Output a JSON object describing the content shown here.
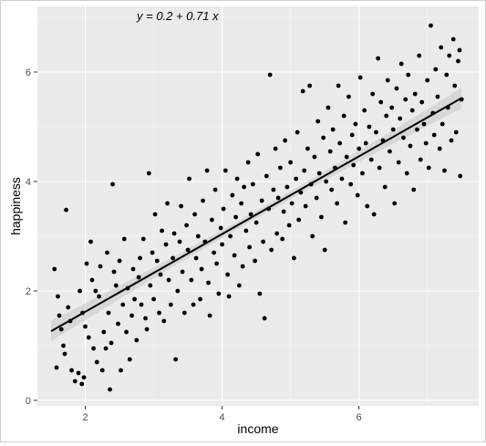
{
  "chart_data": {
    "type": "scatter",
    "annotation": {
      "text": "y = 0.2 + 0.71 x",
      "x": 3.35,
      "y": 6.95
    },
    "xlabel": "income",
    "ylabel": "happiness",
    "xlim": [
      1.3,
      7.75
    ],
    "ylim": [
      -0.1,
      7.2
    ],
    "xticks": [
      2,
      4,
      6
    ],
    "yticks": [
      0,
      2,
      4,
      6
    ],
    "grid": true,
    "fit_line": {
      "intercept": 0.2,
      "slope": 0.71,
      "x_range": [
        1.5,
        7.5
      ]
    },
    "colors": {
      "panel": "#ebebeb",
      "grid_major": "#ffffff",
      "point": "#000000",
      "line": "#000000",
      "ribbon": "#c9c9c9",
      "axis_text": "#4d4d4d"
    },
    "points": [
      [
        1.55,
        2.4
      ],
      [
        1.6,
        1.9
      ],
      [
        1.62,
        1.55
      ],
      [
        1.65,
        1.3
      ],
      [
        1.68,
        1.0
      ],
      [
        1.7,
        0.85
      ],
      [
        1.72,
        3.48
      ],
      [
        1.58,
        0.6
      ],
      [
        1.75,
        1.7
      ],
      [
        1.78,
        1.45
      ],
      [
        1.8,
        0.55
      ],
      [
        1.85,
        0.35
      ],
      [
        1.9,
        0.5
      ],
      [
        1.92,
        2.0
      ],
      [
        1.95,
        0.3
      ],
      [
        1.96,
        1.6
      ],
      [
        1.98,
        0.42
      ],
      [
        2.0,
        1.35
      ],
      [
        2.02,
        2.5
      ],
      [
        2.05,
        1.15
      ],
      [
        2.08,
        2.9
      ],
      [
        2.1,
        2.2
      ],
      [
        2.12,
        0.95
      ],
      [
        2.15,
        2.0
      ],
      [
        2.17,
        0.7
      ],
      [
        2.2,
        1.9
      ],
      [
        2.22,
        2.45
      ],
      [
        2.25,
        0.55
      ],
      [
        2.27,
        1.25
      ],
      [
        2.3,
        0.95
      ],
      [
        2.32,
        2.7
      ],
      [
        2.34,
        1.6
      ],
      [
        2.36,
        0.2
      ],
      [
        2.38,
        1.05
      ],
      [
        2.4,
        3.95
      ],
      [
        2.42,
        2.35
      ],
      [
        2.45,
        2.1
      ],
      [
        2.48,
        1.4
      ],
      [
        2.5,
        2.55
      ],
      [
        2.52,
        0.55
      ],
      [
        2.55,
        1.75
      ],
      [
        2.57,
        2.95
      ],
      [
        2.6,
        1.25
      ],
      [
        2.62,
        2.05
      ],
      [
        2.65,
        0.75
      ],
      [
        2.68,
        1.55
      ],
      [
        2.7,
        2.4
      ],
      [
        2.72,
        1.85
      ],
      [
        2.75,
        1.1
      ],
      [
        2.78,
        2.25
      ],
      [
        2.8,
        2.6
      ],
      [
        2.82,
        1.75
      ],
      [
        2.85,
        2.95
      ],
      [
        2.88,
        1.5
      ],
      [
        2.9,
        1.3
      ],
      [
        2.93,
        4.15
      ],
      [
        2.95,
        2.1
      ],
      [
        2.98,
        2.7
      ],
      [
        3.0,
        1.85
      ],
      [
        3.02,
        3.4
      ],
      [
        3.05,
        2.55
      ],
      [
        3.08,
        1.6
      ],
      [
        3.1,
        2.3
      ],
      [
        3.12,
        3.1
      ],
      [
        3.15,
        1.45
      ],
      [
        3.18,
        2.85
      ],
      [
        3.2,
        3.6
      ],
      [
        3.22,
        2.2
      ],
      [
        3.25,
        1.75
      ],
      [
        3.28,
        2.6
      ],
      [
        3.3,
        3.05
      ],
      [
        3.32,
        0.75
      ],
      [
        3.35,
        2.0
      ],
      [
        3.38,
        2.9
      ],
      [
        3.4,
        3.55
      ],
      [
        3.42,
        2.35
      ],
      [
        3.45,
        1.6
      ],
      [
        3.48,
        3.2
      ],
      [
        3.5,
        2.75
      ],
      [
        3.52,
        4.05
      ],
      [
        3.55,
        2.2
      ],
      [
        3.58,
        1.75
      ],
      [
        3.6,
        3.4
      ],
      [
        3.62,
        2.6
      ],
      [
        3.65,
        3.0
      ],
      [
        3.68,
        1.85
      ],
      [
        3.7,
        2.4
      ],
      [
        3.72,
        3.65
      ],
      [
        3.75,
        2.9
      ],
      [
        3.78,
        4.2
      ],
      [
        3.8,
        2.15
      ],
      [
        3.82,
        1.55
      ],
      [
        3.85,
        3.3
      ],
      [
        3.88,
        2.7
      ],
      [
        3.9,
        3.85
      ],
      [
        3.92,
        2.5
      ],
      [
        3.95,
        1.95
      ],
      [
        3.98,
        3.15
      ],
      [
        4.0,
        2.85
      ],
      [
        4.02,
        3.5
      ],
      [
        4.05,
        4.2
      ],
      [
        4.08,
        2.3
      ],
      [
        4.1,
        1.9
      ],
      [
        4.12,
        3.0
      ],
      [
        4.15,
        3.75
      ],
      [
        4.18,
        2.65
      ],
      [
        4.2,
        3.35
      ],
      [
        4.22,
        4.05
      ],
      [
        4.25,
        2.1
      ],
      [
        4.28,
        3.6
      ],
      [
        4.3,
        2.45
      ],
      [
        4.32,
        3.9
      ],
      [
        4.35,
        3.1
      ],
      [
        4.38,
        4.35
      ],
      [
        4.4,
        2.8
      ],
      [
        4.42,
        3.4
      ],
      [
        4.45,
        3.95
      ],
      [
        4.48,
        2.55
      ],
      [
        4.5,
        3.25
      ],
      [
        4.52,
        4.5
      ],
      [
        4.55,
        1.95
      ],
      [
        4.58,
        3.65
      ],
      [
        4.6,
        2.9
      ],
      [
        4.62,
        1.5
      ],
      [
        4.65,
        4.1
      ],
      [
        4.68,
        3.5
      ],
      [
        4.7,
        5.95
      ],
      [
        4.72,
        2.75
      ],
      [
        4.75,
        3.85
      ],
      [
        4.78,
        4.6
      ],
      [
        4.8,
        3.05
      ],
      [
        4.82,
        3.7
      ],
      [
        4.85,
        4.25
      ],
      [
        4.88,
        2.95
      ],
      [
        4.9,
        3.45
      ],
      [
        4.92,
        4.75
      ],
      [
        4.95,
        3.9
      ],
      [
        4.98,
        3.2
      ],
      [
        5.0,
        4.35
      ],
      [
        5.02,
        3.6
      ],
      [
        5.05,
        2.6
      ],
      [
        5.08,
        4.05
      ],
      [
        5.1,
        4.9
      ],
      [
        5.12,
        3.3
      ],
      [
        5.15,
        3.8
      ],
      [
        5.18,
        5.65
      ],
      [
        5.2,
        4.2
      ],
      [
        5.22,
        3.55
      ],
      [
        5.25,
        4.6
      ],
      [
        5.28,
        5.75
      ],
      [
        5.3,
        3.95
      ],
      [
        5.32,
        3.0
      ],
      [
        5.35,
        4.45
      ],
      [
        5.38,
        3.7
      ],
      [
        5.4,
        5.1
      ],
      [
        5.42,
        4.15
      ],
      [
        5.45,
        3.35
      ],
      [
        5.48,
        4.8
      ],
      [
        5.5,
        2.75
      ],
      [
        5.52,
        4.0
      ],
      [
        5.55,
        5.35
      ],
      [
        5.58,
        4.55
      ],
      [
        5.6,
        3.85
      ],
      [
        5.62,
        4.95
      ],
      [
        5.65,
        4.25
      ],
      [
        5.68,
        3.6
      ],
      [
        5.7,
        5.75
      ],
      [
        5.72,
        4.7
      ],
      [
        5.75,
        4.05
      ],
      [
        5.78,
        5.2
      ],
      [
        5.8,
        3.25
      ],
      [
        5.82,
        4.45
      ],
      [
        5.85,
        5.55
      ],
      [
        5.88,
        3.95
      ],
      [
        5.9,
        4.85
      ],
      [
        5.92,
        4.3
      ],
      [
        5.95,
        5.05
      ],
      [
        5.98,
        3.75
      ],
      [
        6.0,
        4.6
      ],
      [
        6.02,
        5.9
      ],
      [
        6.05,
        4.15
      ],
      [
        6.08,
        5.3
      ],
      [
        6.1,
        4.7
      ],
      [
        6.12,
        3.55
      ],
      [
        6.15,
        5.0
      ],
      [
        6.18,
        4.4
      ],
      [
        6.2,
        5.6
      ],
      [
        6.22,
        3.4
      ],
      [
        6.25,
        4.9
      ],
      [
        6.28,
        6.25
      ],
      [
        6.3,
        4.25
      ],
      [
        6.32,
        5.45
      ],
      [
        6.35,
        4.75
      ],
      [
        6.38,
        3.9
      ],
      [
        6.4,
        5.2
      ],
      [
        6.42,
        5.85
      ],
      [
        6.45,
        4.55
      ],
      [
        6.48,
        5.35
      ],
      [
        6.5,
        4.95
      ],
      [
        6.52,
        3.6
      ],
      [
        6.55,
        5.7
      ],
      [
        6.58,
        4.35
      ],
      [
        6.6,
        5.15
      ],
      [
        6.62,
        6.15
      ],
      [
        6.65,
        4.8
      ],
      [
        6.68,
        5.5
      ],
      [
        6.7,
        4.15
      ],
      [
        6.72,
        5.95
      ],
      [
        6.75,
        4.65
      ],
      [
        6.78,
        5.3
      ],
      [
        6.8,
        3.85
      ],
      [
        6.82,
        5.6
      ],
      [
        6.85,
        4.95
      ],
      [
        6.88,
        6.3
      ],
      [
        6.9,
        4.4
      ],
      [
        6.92,
        5.45
      ],
      [
        6.95,
        5.05
      ],
      [
        6.98,
        4.7
      ],
      [
        7.0,
        5.85
      ],
      [
        7.02,
        4.25
      ],
      [
        7.05,
        6.85
      ],
      [
        7.08,
        5.25
      ],
      [
        7.1,
        4.85
      ],
      [
        7.12,
        6.05
      ],
      [
        7.15,
        5.55
      ],
      [
        7.18,
        4.6
      ],
      [
        7.2,
        6.45
      ],
      [
        7.22,
        5.05
      ],
      [
        7.25,
        4.2
      ],
      [
        7.28,
        5.95
      ],
      [
        7.3,
        5.35
      ],
      [
        7.32,
        6.3
      ],
      [
        7.35,
        4.75
      ],
      [
        7.38,
        6.6
      ],
      [
        7.4,
        5.75
      ],
      [
        7.42,
        4.9
      ],
      [
        7.45,
        6.2
      ],
      [
        7.48,
        4.1
      ],
      [
        7.5,
        5.5
      ],
      [
        7.47,
        6.4
      ]
    ]
  }
}
